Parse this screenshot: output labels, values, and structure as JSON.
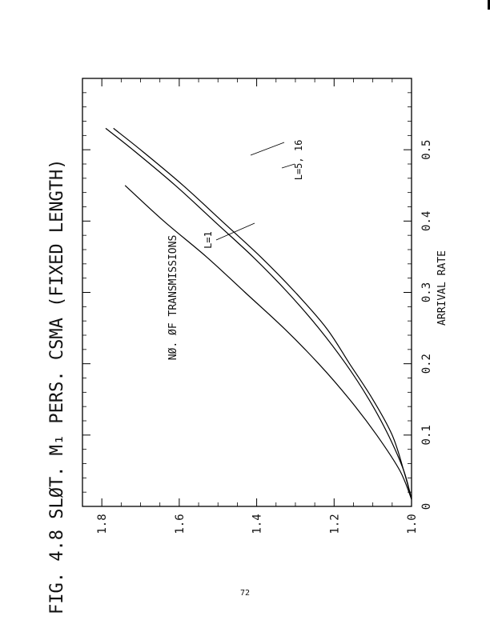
{
  "page": {
    "figure_title": "FIG. 4.8 SLØT. M₁ PERS. CSMA (FIXED LENGTH)",
    "page_number": "72"
  },
  "chart_data": {
    "type": "line",
    "title": "FIG. 4.8 SLØT. M₁ PERS. CSMA (FIXED LENGTH)",
    "xlabel": "ARRIVAL RATE",
    "ylabel": "NØ. ØF TRANSMISSIONS",
    "xlim": [
      0,
      0.6
    ],
    "ylim": [
      1.0,
      1.85
    ],
    "x_ticks": [
      "0",
      "0.1",
      "0.2",
      "0.3",
      "0.4",
      "0.5"
    ],
    "x_tick_values": [
      0,
      0.1,
      0.2,
      0.3,
      0.4,
      0.5
    ],
    "y_ticks": [
      "1.0",
      "1.2",
      "1.4",
      "1.6",
      "1.8"
    ],
    "y_tick_values": [
      1.0,
      1.2,
      1.4,
      1.6,
      1.8
    ],
    "grid": false,
    "orientation": "rotated 90° counter-clockwise on the page",
    "series": [
      {
        "name": "L=1",
        "x": [
          0.01,
          0.05,
          0.1,
          0.15,
          0.2,
          0.25,
          0.3,
          0.35,
          0.4,
          0.45
        ],
        "y": [
          1.0,
          1.03,
          1.09,
          1.16,
          1.24,
          1.33,
          1.43,
          1.53,
          1.64,
          1.74
        ]
      },
      {
        "name": "L=5, 16",
        "x": [
          0.01,
          0.05,
          0.1,
          0.15,
          0.2,
          0.25,
          0.3,
          0.35,
          0.4,
          0.45,
          0.5,
          0.53
        ],
        "y": [
          1.0,
          1.02,
          1.06,
          1.11,
          1.17,
          1.24,
          1.32,
          1.41,
          1.51,
          1.61,
          1.72,
          1.79
        ]
      },
      {
        "name": "",
        "x": [
          0.01,
          0.05,
          0.1,
          0.15,
          0.2,
          0.25,
          0.3,
          0.35,
          0.4,
          0.45,
          0.5,
          0.53
        ],
        "y": [
          1.0,
          1.02,
          1.05,
          1.1,
          1.16,
          1.22,
          1.3,
          1.39,
          1.49,
          1.59,
          1.7,
          1.77
        ]
      }
    ],
    "annotations": [
      "L=1",
      "L=5, 16"
    ]
  }
}
